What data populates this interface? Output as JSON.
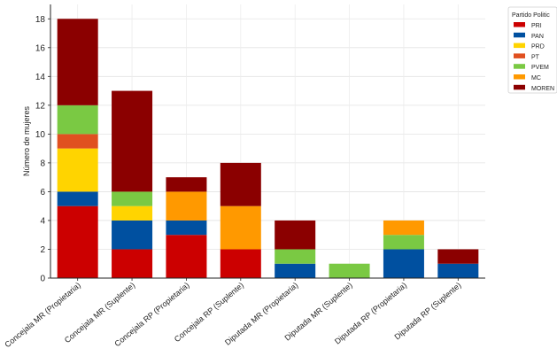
{
  "chart_data": {
    "type": "bar",
    "stacked": true,
    "title": "",
    "xlabel": "",
    "ylabel": "Número de mujeres",
    "ylim": [
      0,
      19
    ],
    "yticks": [
      0,
      2,
      4,
      6,
      8,
      10,
      12,
      14,
      16,
      18
    ],
    "grid": true,
    "legend_position": "right",
    "legend_title": "Partido Politic",
    "categories": [
      "Concejala MR (Propietaria)",
      "Concejala MR (Suplente)",
      "Concejala RP (Propietaria)",
      "Concejala RP (Suplente)",
      "Diputada MR (Propietaria)",
      "Diputada MR (Suplente)",
      "Diputada RP (Propietaria)",
      "Diputada RP (Suplente)"
    ],
    "series": [
      {
        "name": "PRI",
        "color": "#cc0000",
        "values": [
          5,
          2,
          3,
          2,
          0,
          0,
          0,
          0
        ]
      },
      {
        "name": "PAN",
        "color": "#0050a0",
        "values": [
          1,
          2,
          1,
          0,
          1,
          0,
          2,
          1
        ]
      },
      {
        "name": "PRD",
        "color": "#ffd400",
        "values": [
          3,
          1,
          0,
          0,
          0,
          0,
          0,
          0
        ]
      },
      {
        "name": "PT",
        "color": "#e05020",
        "values": [
          1,
          0,
          0,
          0,
          0,
          0,
          0,
          0
        ]
      },
      {
        "name": "PVEM",
        "color": "#7ac943",
        "values": [
          2,
          1,
          0,
          0,
          1,
          1,
          1,
          0
        ]
      },
      {
        "name": "MC",
        "color": "#ff9900",
        "values": [
          0,
          0,
          2,
          3,
          0,
          0,
          1,
          0
        ]
      },
      {
        "name": "MOREN",
        "color": "#8b0000",
        "values": [
          6,
          7,
          1,
          3,
          2,
          0,
          0,
          1
        ]
      }
    ]
  }
}
